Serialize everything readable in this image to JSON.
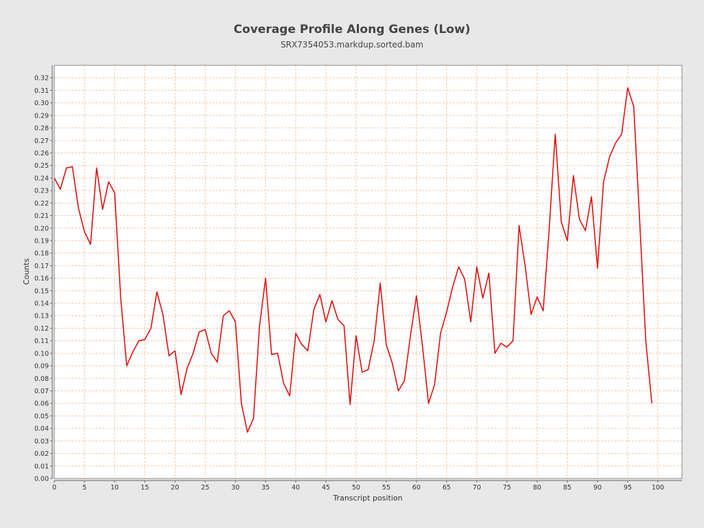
{
  "chart_data": {
    "type": "line",
    "title": "Coverage Profile Along Genes (Low)",
    "subtitle": "SRX7354053.markdup.sorted.bam",
    "xlabel": "Transcript position",
    "ylabel": "Counts",
    "xlim": [
      0,
      104
    ],
    "ylim": [
      0,
      0.33
    ],
    "x_ticks": [
      0,
      5,
      10,
      15,
      20,
      25,
      30,
      35,
      40,
      45,
      50,
      55,
      60,
      65,
      70,
      75,
      80,
      85,
      90,
      95,
      100
    ],
    "x_tick_labels": [
      "0",
      "5",
      "10",
      "15",
      "20",
      "25",
      "30",
      "35",
      "40",
      "45",
      "50",
      "55",
      "60",
      "65",
      "70",
      "75",
      "80",
      "85",
      "90",
      "95",
      "100"
    ],
    "y_ticks": [
      0.0,
      0.01,
      0.02,
      0.03,
      0.04,
      0.05,
      0.06,
      0.07,
      0.08,
      0.09,
      0.1,
      0.11,
      0.12,
      0.13,
      0.14,
      0.15,
      0.16,
      0.17,
      0.18,
      0.19,
      0.2,
      0.21,
      0.22,
      0.23,
      0.24,
      0.25,
      0.26,
      0.27,
      0.28,
      0.29,
      0.3,
      0.31,
      0.32
    ],
    "y_tick_labels": [
      "0.00",
      "0.01",
      "0.02",
      "0.03",
      "0.04",
      "0.05",
      "0.06",
      "0.07",
      "0.08",
      "0.09",
      "0.10",
      "0.11",
      "0.12",
      "0.13",
      "0.14",
      "0.15",
      "0.16",
      "0.17",
      "0.18",
      "0.19",
      "0.20",
      "0.21",
      "0.22",
      "0.23",
      "0.24",
      "0.25",
      "0.26",
      "0.27",
      "0.28",
      "0.29",
      "0.30",
      "0.31",
      "0.32"
    ],
    "grid": true,
    "legend": "none",
    "colors": {
      "line": "#dd1111",
      "grid": "#f0c8a8",
      "plot_bg": "#ffffff",
      "page_bg": "#e8e8e8",
      "frame": "#888888"
    },
    "series": [
      {
        "x": [
          0,
          1,
          2,
          3,
          4,
          5,
          6,
          7,
          8,
          9,
          10,
          11,
          12,
          13,
          14,
          15,
          16,
          17,
          18,
          19,
          20,
          21,
          22,
          23,
          24,
          25,
          26,
          27,
          28,
          29,
          30,
          31,
          32,
          33,
          34,
          35,
          36,
          37,
          38,
          39,
          40,
          41,
          42,
          43,
          44,
          45,
          46,
          47,
          48,
          49,
          50,
          51,
          52,
          53,
          54,
          55,
          56,
          57,
          58,
          59,
          60,
          61,
          62,
          63,
          64,
          65,
          66,
          67,
          68,
          69,
          70,
          71,
          72,
          73,
          74,
          75,
          76,
          77,
          78,
          79,
          80,
          81,
          82,
          83,
          84,
          85,
          86,
          87,
          88,
          89,
          90,
          91,
          92,
          93,
          94,
          95,
          96,
          97,
          98,
          99
        ],
        "values": [
          0.24,
          0.231,
          0.248,
          0.249,
          0.216,
          0.197,
          0.187,
          0.248,
          0.215,
          0.237,
          0.228,
          0.144,
          0.09,
          0.101,
          0.11,
          0.111,
          0.12,
          0.149,
          0.131,
          0.098,
          0.102,
          0.067,
          0.088,
          0.1,
          0.117,
          0.119,
          0.1,
          0.093,
          0.13,
          0.134,
          0.125,
          0.06,
          0.037,
          0.048,
          0.122,
          0.16,
          0.099,
          0.1,
          0.076,
          0.066,
          0.116,
          0.107,
          0.102,
          0.135,
          0.147,
          0.125,
          0.142,
          0.127,
          0.122,
          0.059,
          0.114,
          0.085,
          0.087,
          0.11,
          0.156,
          0.107,
          0.092,
          0.07,
          0.078,
          0.114,
          0.146,
          0.106,
          0.06,
          0.075,
          0.116,
          0.133,
          0.153,
          0.169,
          0.159,
          0.125,
          0.169,
          0.144,
          0.164,
          0.1,
          0.108,
          0.105,
          0.11,
          0.202,
          0.17,
          0.131,
          0.145,
          0.134,
          0.2,
          0.275,
          0.205,
          0.19,
          0.242,
          0.207,
          0.198,
          0.225,
          0.168,
          0.237,
          0.257,
          0.268,
          0.275,
          0.312,
          0.297,
          0.205,
          0.11,
          0.06
        ]
      }
    ]
  }
}
